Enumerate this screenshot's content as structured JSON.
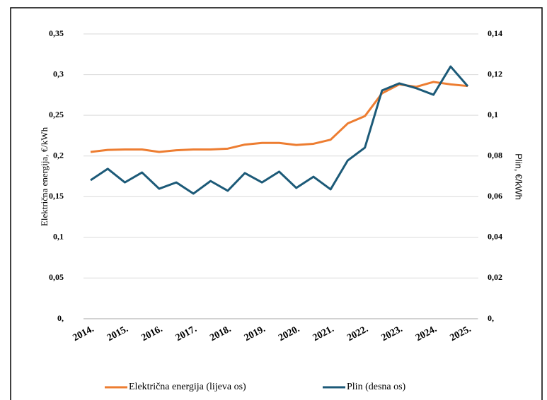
{
  "chart_data": {
    "type": "line",
    "y_label": "Električna energija, €/kWh",
    "y2_label": "Plin,  €/kWh",
    "categories": [
      "2014.",
      null,
      "2015.",
      null,
      "2016.",
      null,
      "2017.",
      null,
      "2018.",
      null,
      "2019.",
      null,
      "2020.",
      null,
      "2021.",
      null,
      "2022.",
      null,
      "2023.",
      null,
      "2024.",
      null,
      "2025."
    ],
    "series": [
      {
        "name": "Električna energija (lijeva os)",
        "color": "#ed7d31",
        "axis": "y",
        "values": [
          0.205,
          0.2075,
          0.208,
          0.208,
          0.205,
          0.207,
          0.208,
          0.208,
          0.209,
          0.214,
          0.216,
          0.216,
          0.2135,
          0.215,
          0.22,
          0.24,
          0.249,
          0.277,
          0.288,
          0.285,
          0.291,
          0.288,
          0.286
        ]
      },
      {
        "name": "Plin (desna os)",
        "color": "#1c5a78",
        "axis": "y2",
        "values": [
          0.0681,
          0.0737,
          0.067,
          0.0719,
          0.0639,
          0.067,
          0.0615,
          0.0677,
          0.0629,
          0.0716,
          0.067,
          0.0723,
          0.0643,
          0.0698,
          0.0636,
          0.0778,
          0.0841,
          0.1122,
          0.1157,
          0.1133,
          0.1101,
          0.124,
          0.1143
        ]
      }
    ],
    "ylim": [
      0,
      0.35
    ],
    "yticks": [
      {
        "value": 0,
        "label": "0,"
      },
      {
        "value": 0.05,
        "label": "0,05"
      },
      {
        "value": 0.1,
        "label": "0,1"
      },
      {
        "value": 0.15,
        "label": "0,15"
      },
      {
        "value": 0.2,
        "label": "0,2"
      },
      {
        "value": 0.25,
        "label": "0,25"
      },
      {
        "value": 0.3,
        "label": "0,3"
      },
      {
        "value": 0.35,
        "label": "0,35"
      }
    ],
    "y2lim": [
      0,
      0.14
    ],
    "y2ticks": [
      {
        "value": 0,
        "label": "0,"
      },
      {
        "value": 0.02,
        "label": "0,02"
      },
      {
        "value": 0.04,
        "label": "0,04"
      },
      {
        "value": 0.06,
        "label": "0,06"
      },
      {
        "value": 0.08,
        "label": "0,08"
      },
      {
        "value": 0.1,
        "label": "0,1"
      },
      {
        "value": 0.12,
        "label": "0,12"
      },
      {
        "value": 0.14,
        "label": "0,14"
      }
    ],
    "grid": true,
    "legend": "bottom"
  }
}
